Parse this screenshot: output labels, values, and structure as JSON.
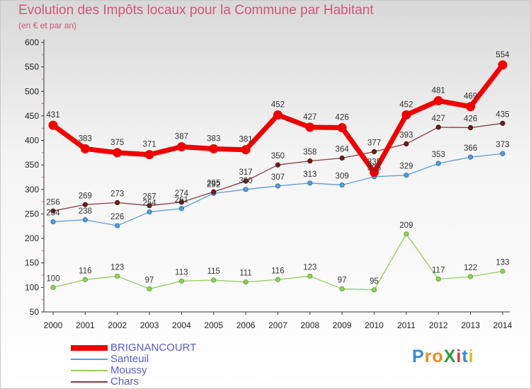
{
  "title": "Evolution des Impôts locaux pour la Commune par Habitant",
  "subtitle": "(en € et par an)",
  "brand": {
    "letters": [
      {
        "char": "P",
        "color": "#3a89d6"
      },
      {
        "char": "r",
        "color": "#f08a1c"
      },
      {
        "char": "o",
        "color": "#f08a1c"
      },
      {
        "char": "X",
        "color": "#2b9e3a"
      },
      {
        "char": "i",
        "color": "#d43a3a"
      },
      {
        "char": "t",
        "color": "#3a89d6"
      },
      {
        "char": "i",
        "color": "#d4c21c"
      }
    ]
  },
  "chart_data": {
    "type": "line",
    "title": "Evolution des Impôts locaux pour la Commune par Habitant",
    "subtitle": "(en € et par an)",
    "xlabel": "",
    "ylabel": "",
    "x": [
      "2000",
      "2001",
      "2002",
      "2003",
      "2004",
      "2005",
      "2006",
      "2007",
      "2008",
      "2009",
      "2010",
      "2011",
      "2012",
      "2013",
      "2014"
    ],
    "ylim": [
      50,
      600
    ],
    "yticks": [
      50,
      100,
      150,
      200,
      250,
      300,
      350,
      400,
      450,
      500,
      550,
      600
    ],
    "grid": false,
    "legend_position": "bottom-left",
    "series": [
      {
        "name": "BRIGNANCOURT",
        "color": "#ee0000",
        "values": [
          431,
          383,
          375,
          371,
          387,
          383,
          381,
          452,
          427,
          426,
          335,
          452,
          481,
          469,
          554
        ]
      },
      {
        "name": "Santeuil",
        "color": "#5a9bd5",
        "values": [
          234,
          238,
          226,
          254,
          261,
          292,
          300,
          307,
          313,
          309,
          326,
          329,
          353,
          366,
          373
        ]
      },
      {
        "name": "Moussy",
        "color": "#8fcf5a",
        "values": [
          100,
          116,
          123,
          97,
          113,
          115,
          111,
          116,
          123,
          97,
          95,
          209,
          117,
          122,
          133
        ]
      },
      {
        "name": "Chars",
        "color": "#7a2a2a",
        "values": [
          256,
          269,
          273,
          267,
          274,
          295,
          317,
          350,
          358,
          364,
          377,
          393,
          427,
          426,
          435
        ]
      }
    ]
  }
}
